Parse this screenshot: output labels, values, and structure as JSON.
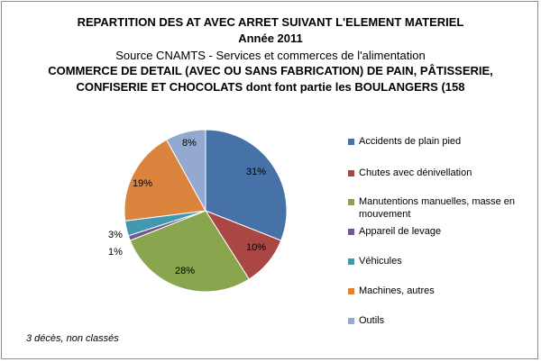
{
  "title": {
    "line1": "REPARTITION DES AT AVEC ARRET SUIVANT L'ELEMENT MATERIEL",
    "line2": "Année 2011",
    "line3": "Source CNAMTS -  Services et commerces de l'alimentation",
    "line4": "COMMERCE DE DETAIL (AVEC OU SANS FABRICATION) DE PAIN, PÂTISSERIE,",
    "line5": "CONFISERIE ET CHOCOLATS  dont font partie les BOULANGERS (158"
  },
  "footnote": "3 décès, non classés",
  "chart_data": {
    "type": "pie",
    "categories": [
      "Accidents de plain pied",
      "Chutes avec dénivellation",
      "Manutentions manuelles, masse en mouvement",
      "Appareil de levage",
      "Véhicules",
      "Machines, autres",
      "Outils"
    ],
    "values": [
      31,
      10,
      28,
      1,
      3,
      19,
      8
    ],
    "labels": [
      "31%",
      "10%",
      "28%",
      "1%",
      "3%",
      "19%",
      "8%"
    ],
    "colors": [
      "#4672A8",
      "#AA4643",
      "#89A54E",
      "#71588F",
      "#4198AF",
      "#DB843D",
      "#93A9CF"
    ],
    "legend_position": "right"
  }
}
